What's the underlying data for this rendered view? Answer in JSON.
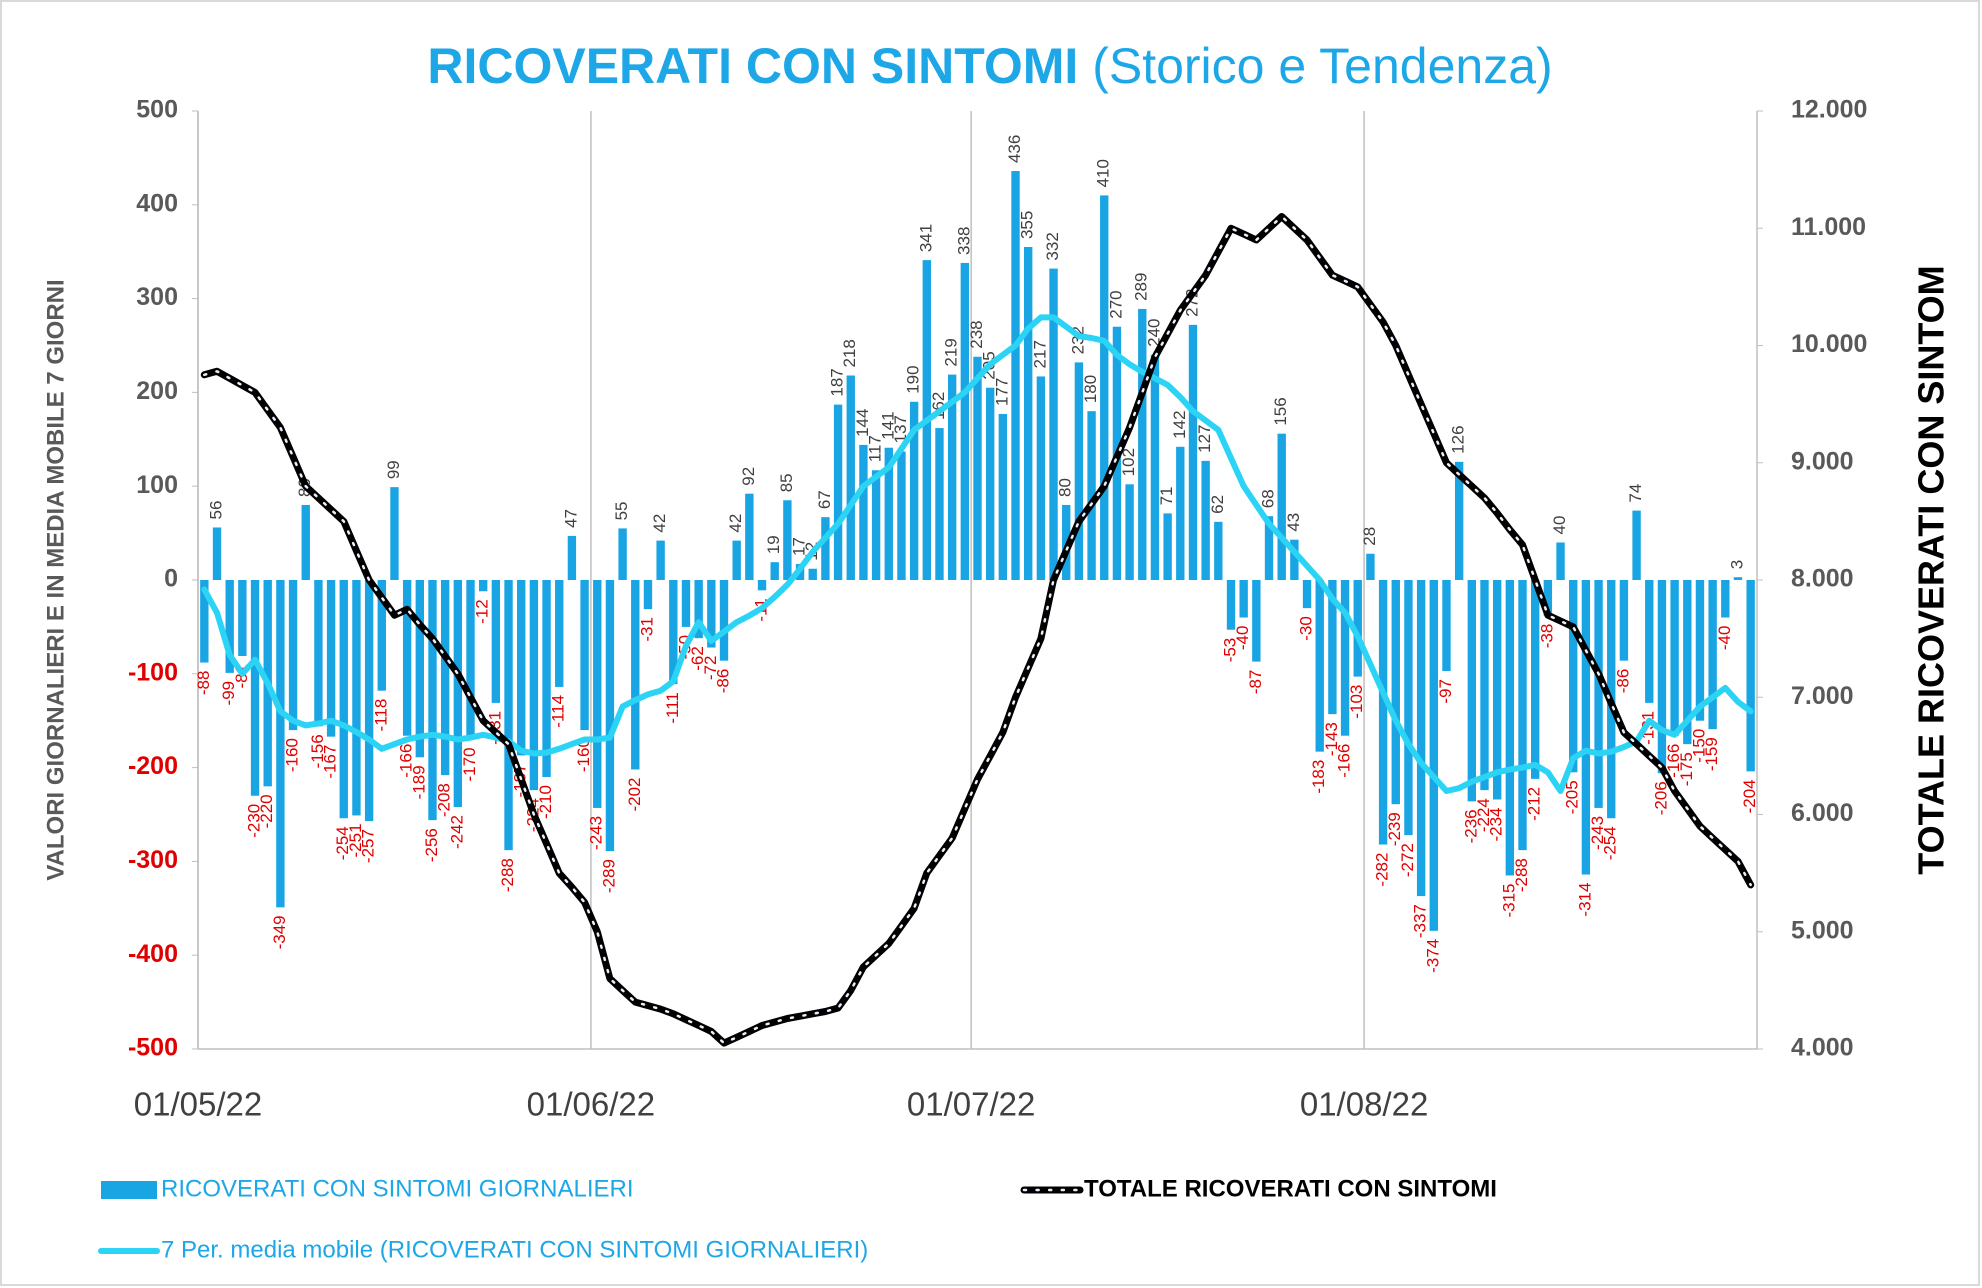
{
  "chart_data": {
    "type": "bar",
    "title": "RICOVERATI CON SINTOMI",
    "subtitle": "(Storico e Tendenza)",
    "y_label": "VALORI GIORNALIERI E IN MEDIA MOBILE 7 GIORNI",
    "y2_label": "TOTALE RICOVERATI CON SINTOM",
    "legend": "bottom",
    "categories": [
      "01/05/22",
      null,
      null,
      null,
      null,
      null,
      null,
      null,
      null,
      null,
      null,
      null,
      null,
      null,
      null,
      null,
      null,
      null,
      null,
      null,
      null,
      null,
      null,
      null,
      null,
      null,
      null,
      null,
      null,
      null,
      null,
      "01/06/22",
      null,
      null,
      null,
      null,
      null,
      null,
      null,
      null,
      null,
      null,
      null,
      null,
      null,
      null,
      null,
      null,
      null,
      null,
      null,
      null,
      null,
      null,
      null,
      null,
      null,
      null,
      null,
      null,
      null,
      "01/07/22",
      null,
      null,
      null,
      null,
      null,
      null,
      null,
      null,
      null,
      null,
      null,
      null,
      null,
      null,
      null,
      null,
      null,
      null,
      null,
      null,
      null,
      null,
      null,
      null,
      null,
      null,
      null,
      null,
      null,
      null,
      "01/08/22",
      null,
      null,
      null,
      null,
      null,
      null,
      null,
      null,
      null,
      null,
      null,
      null,
      null,
      null,
      null,
      null,
      null,
      null,
      null,
      null,
      null,
      null,
      null,
      null,
      null,
      null,
      null,
      null,
      null,
      null
    ],
    "series": [
      {
        "name": "RICOVERATI CON SINTOMI GIORNALIERI",
        "type": "bar",
        "color": "#19a4e3",
        "values": [
          -88,
          56,
          -99,
          -81,
          -230,
          -220,
          -349,
          -160,
          80,
          -156,
          -167,
          -254,
          -251,
          -257,
          -118,
          99,
          -166,
          -189,
          -256,
          -208,
          -242,
          -170,
          -12,
          -131,
          -288,
          -187,
          -224,
          -210,
          -114,
          47,
          -160,
          -243,
          -289,
          55,
          -202,
          -31,
          42,
          -111,
          -50,
          -62,
          -72,
          -86,
          42,
          92,
          -11,
          19,
          85,
          17,
          12,
          67,
          187,
          218,
          144,
          117,
          141,
          137,
          190,
          341,
          162,
          219,
          338,
          238,
          205,
          177,
          436,
          355,
          217,
          332,
          80,
          232,
          180,
          410,
          270,
          102,
          289,
          240,
          71,
          142,
          272,
          127,
          62,
          -53,
          -40,
          -87,
          68,
          156,
          43,
          -30,
          -183,
          -143,
          -166,
          -103,
          28,
          -282,
          -239,
          -272,
          -337,
          -374,
          -97,
          126,
          -236,
          -224,
          -234,
          -315,
          -288,
          -212,
          -38,
          40,
          -205,
          -314,
          -243,
          -254,
          -86,
          74,
          -131,
          -206,
          -166,
          -175,
          -150,
          -159,
          -40,
          3,
          -204
        ]
      },
      {
        "name": "TOTALE RICOVERATI CON SINTOMI",
        "type": "line",
        "axis": "y2",
        "color": "#000000",
        "values": [
          9750,
          9780,
          9720,
          9660,
          9600,
          9450,
          9300,
          9050,
          8800,
          8700,
          8600,
          8500,
          8250,
          8000,
          7850,
          7700,
          7750,
          7620,
          7500,
          7350,
          7200,
          7000,
          6800,
          6700,
          6600,
          6300,
          6000,
          5750,
          5500,
          5380,
          5250,
          5000,
          4600,
          4500,
          4400,
          4370,
          4340,
          4300,
          4250,
          4200,
          4150,
          4050,
          4100,
          4150,
          4200,
          4230,
          4260,
          4280,
          4300,
          4320,
          4350,
          4500,
          4700,
          4800,
          4900,
          5050,
          5200,
          5500,
          5650,
          5800,
          6050,
          6300,
          6500,
          6700,
          7000,
          7250,
          7500,
          8000,
          8250,
          8500,
          8650,
          8800,
          9050,
          9300,
          9600,
          9900,
          10100,
          10300,
          10450,
          10600,
          10800,
          11000,
          10950,
          10900,
          11000,
          11100,
          11000,
          10900,
          10750,
          10600,
          10550,
          10500,
          10350,
          10200,
          10000,
          9750,
          9500,
          9250,
          9000,
          8900,
          8800,
          8700,
          8570,
          8430,
          8300,
          8000,
          7700,
          7650,
          7600,
          7400,
          7200,
          6950,
          6700,
          6600,
          6500,
          6400,
          6200,
          6050,
          5900,
          5800,
          5700,
          5600,
          5400
        ]
      },
      {
        "name": "7 Per. media mobile (RICOVERATI CON SINTOMI GIORNALIERI)",
        "type": "line",
        "color": "#2bd3f4",
        "values": [
          -10,
          -35,
          -80,
          -100,
          -85,
          -110,
          -140,
          -150,
          -155,
          -153,
          -150,
          -155,
          -162,
          -170,
          -180,
          -175,
          -170,
          -167,
          -165,
          -167,
          -170,
          -168,
          -165,
          -168,
          -172,
          -182,
          -185,
          -184,
          -180,
          -175,
          -170,
          -170,
          -168,
          -135,
          -128,
          -122,
          -118,
          -108,
          -70,
          -45,
          -65,
          -55,
          -45,
          -38,
          -30,
          -18,
          -5,
          12,
          30,
          45,
          60,
          80,
          100,
          110,
          120,
          140,
          160,
          170,
          180,
          190,
          200,
          215,
          230,
          240,
          250,
          268,
          280,
          280,
          270,
          260,
          258,
          255,
          240,
          230,
          222,
          215,
          208,
          195,
          180,
          170,
          160,
          130,
          100,
          80,
          60,
          45,
          30,
          15,
          0,
          -20,
          -35,
          -60,
          -90,
          -120,
          -150,
          -175,
          -195,
          -210,
          -225,
          -222,
          -215,
          -210,
          -205,
          -202,
          -200,
          -197,
          -205,
          -225,
          -190,
          -182,
          -185,
          -183,
          -178,
          -172,
          -150,
          -160,
          -165,
          -150,
          -135,
          -125,
          -115,
          -130,
          -140
        ]
      }
    ],
    "ylim": [
      -500,
      500
    ],
    "yticks": [
      -500,
      -400,
      -300,
      -200,
      -100,
      0,
      100,
      200,
      300,
      400,
      500
    ],
    "y2lim": [
      4000,
      12000
    ],
    "y2ticks": [
      {
        "value": 4000,
        "label": "4.000"
      },
      {
        "value": 5000,
        "label": "5.000"
      },
      {
        "value": 6000,
        "label": "6.000"
      },
      {
        "value": 7000,
        "label": "7.000"
      },
      {
        "value": 8000,
        "label": "8.000"
      },
      {
        "value": 9000,
        "label": "9.000"
      },
      {
        "value": 10000,
        "label": "10.000"
      },
      {
        "value": 11000,
        "label": "11.000"
      },
      {
        "value": 12000,
        "label": "12.000"
      }
    ]
  }
}
